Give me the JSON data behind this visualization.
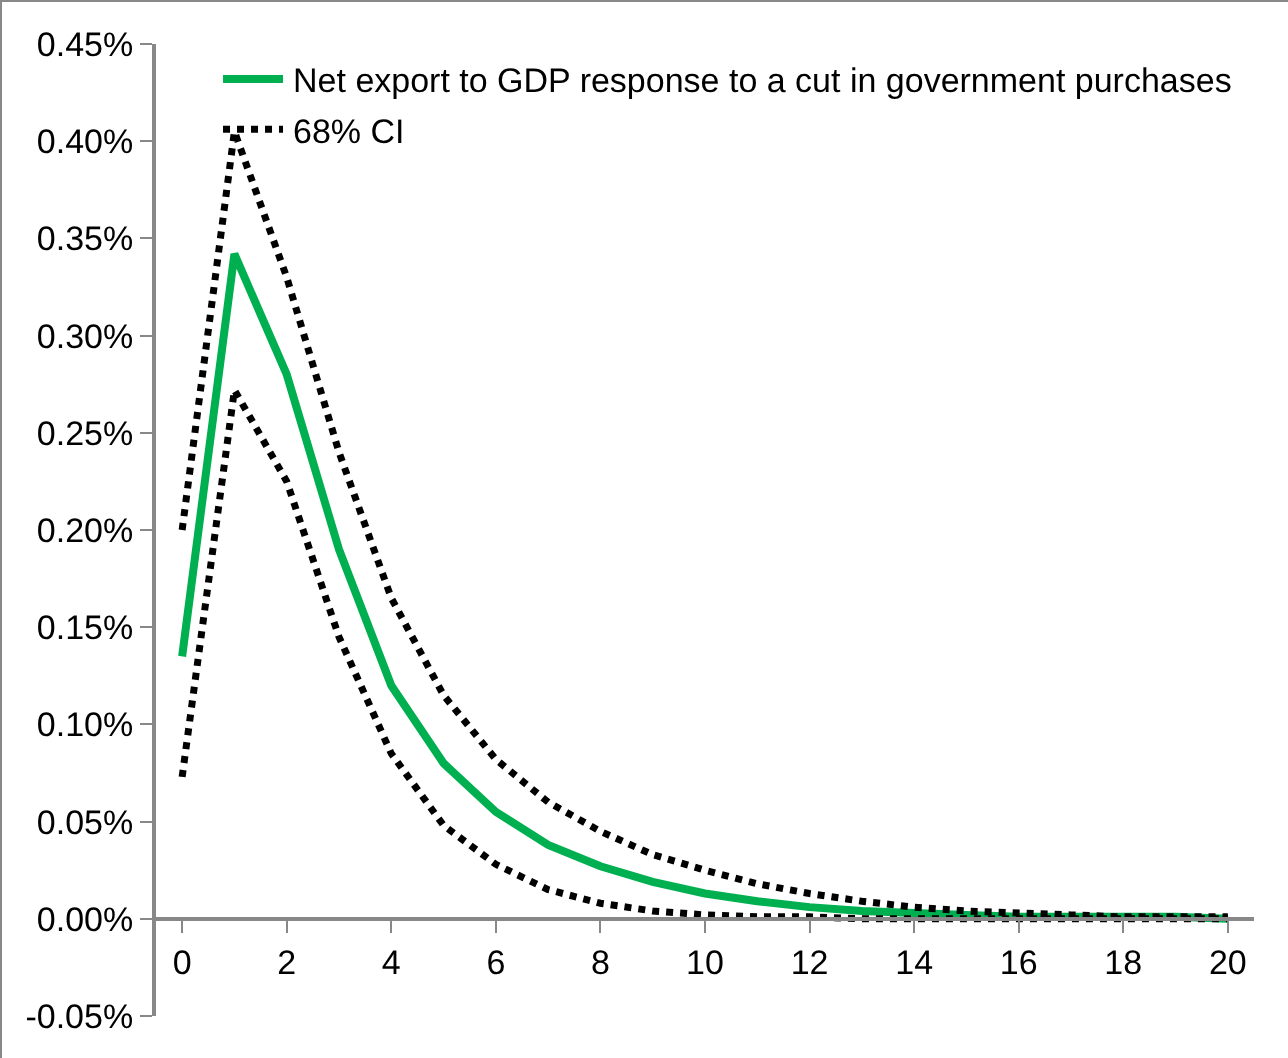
{
  "chart_data": {
    "type": "line",
    "x": [
      0,
      1,
      2,
      3,
      4,
      5,
      6,
      7,
      8,
      9,
      10,
      11,
      12,
      13,
      14,
      15,
      16,
      17,
      18,
      19,
      20
    ],
    "series": [
      {
        "name": "Net export to GDP response to a cut in government purchases",
        "color": "#00b050",
        "line_style": "solid",
        "values": [
          0.135,
          0.342,
          0.28,
          0.19,
          0.12,
          0.08,
          0.055,
          0.038,
          0.027,
          0.019,
          0.013,
          0.009,
          0.006,
          0.004,
          0.003,
          0.002,
          0.001,
          0.001,
          0.001,
          0.001,
          0
        ]
      },
      {
        "name": "68% CI",
        "color": "#000000",
        "line_style": "dotted",
        "values": [
          0.2,
          0.405,
          0.33,
          0.24,
          0.165,
          0.115,
          0.082,
          0.06,
          0.045,
          0.033,
          0.025,
          0.018,
          0.013,
          0.009,
          0.006,
          0.004,
          0.003,
          0.002,
          0.001,
          0.001,
          0.001
        ]
      },
      {
        "color": "#000000",
        "line_style": "dotted",
        "values": [
          0.073,
          0.272,
          0.225,
          0.145,
          0.085,
          0.048,
          0.028,
          0.015,
          0.008,
          0.004,
          0.002,
          0.001,
          0.001,
          0,
          0,
          0,
          0,
          0,
          0,
          0,
          0
        ]
      }
    ],
    "xlim": [
      -0.5,
      20.5
    ],
    "xticks": [
      0,
      2,
      4,
      6,
      8,
      10,
      12,
      14,
      16,
      18,
      20
    ],
    "ylim": [
      -0.05,
      0.45
    ],
    "yticks": [
      {
        "value": -0.05,
        "label": "-0.05%"
      },
      {
        "value": 0,
        "label": "0.00%"
      },
      {
        "value": 0.05,
        "label": "0.05%"
      },
      {
        "value": 0.1,
        "label": "0.10%"
      },
      {
        "value": 0.15,
        "label": "0.15%"
      },
      {
        "value": 0.2,
        "label": "0.20%"
      },
      {
        "value": 0.25,
        "label": "0.25%"
      },
      {
        "value": 0.3,
        "label": "0.30%"
      },
      {
        "value": 0.35,
        "label": "0.35%"
      },
      {
        "value": 0.4,
        "label": "0.40%"
      },
      {
        "value": 0.45,
        "label": "0.45%"
      }
    ],
    "grid": false,
    "legend": "top right",
    "marker": "none"
  }
}
